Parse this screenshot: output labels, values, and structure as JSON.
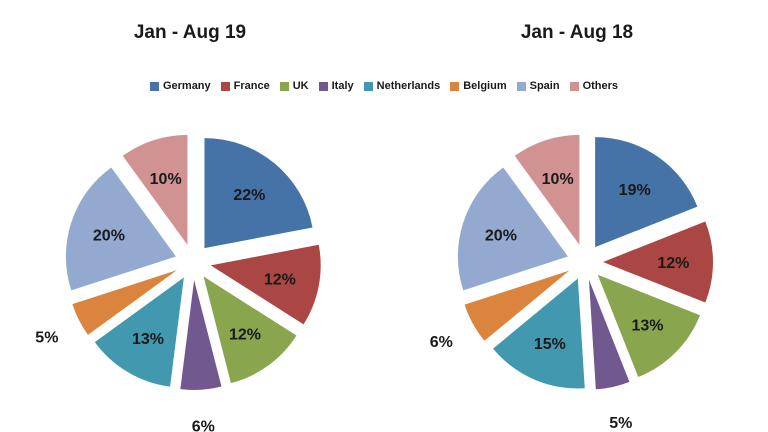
{
  "chart_data": [
    {
      "type": "pie",
      "title": "Jan - Aug 19",
      "labels": [
        "Germany",
        "France",
        "UK",
        "Italy",
        "Netherlands",
        "Belgium",
        "Spain",
        "Others"
      ],
      "values": [
        22,
        12,
        12,
        6,
        13,
        5,
        20,
        10
      ],
      "display_labels": [
        "22%",
        "12%",
        "12%",
        "6%",
        "13%",
        "5%",
        "20%",
        "10%"
      ],
      "legend": "top"
    },
    {
      "type": "pie",
      "title": "Jan - Aug 18",
      "labels": [
        "Germany",
        "France",
        "UK",
        "Italy",
        "Netherlands",
        "Belgium",
        "Spain",
        "Others"
      ],
      "values": [
        19,
        12,
        13,
        5,
        15,
        6,
        20,
        10
      ],
      "display_labels": [
        "19%",
        "12%",
        "13%",
        "5%",
        "15%",
        "6%",
        "20%",
        "10%"
      ],
      "legend": "top"
    }
  ],
  "legend": {
    "items": [
      {
        "label": "Germany",
        "color": "#4572A7"
      },
      {
        "label": "France",
        "color": "#AA4643"
      },
      {
        "label": "UK",
        "color": "#89A54E"
      },
      {
        "label": "Italy",
        "color": "#71588F"
      },
      {
        "label": "Netherlands",
        "color": "#4198AF"
      },
      {
        "label": "Belgium",
        "color": "#DB843D"
      },
      {
        "label": "Spain",
        "color": "#93A9CF"
      },
      {
        "label": "Others",
        "color": "#D19392"
      }
    ]
  }
}
